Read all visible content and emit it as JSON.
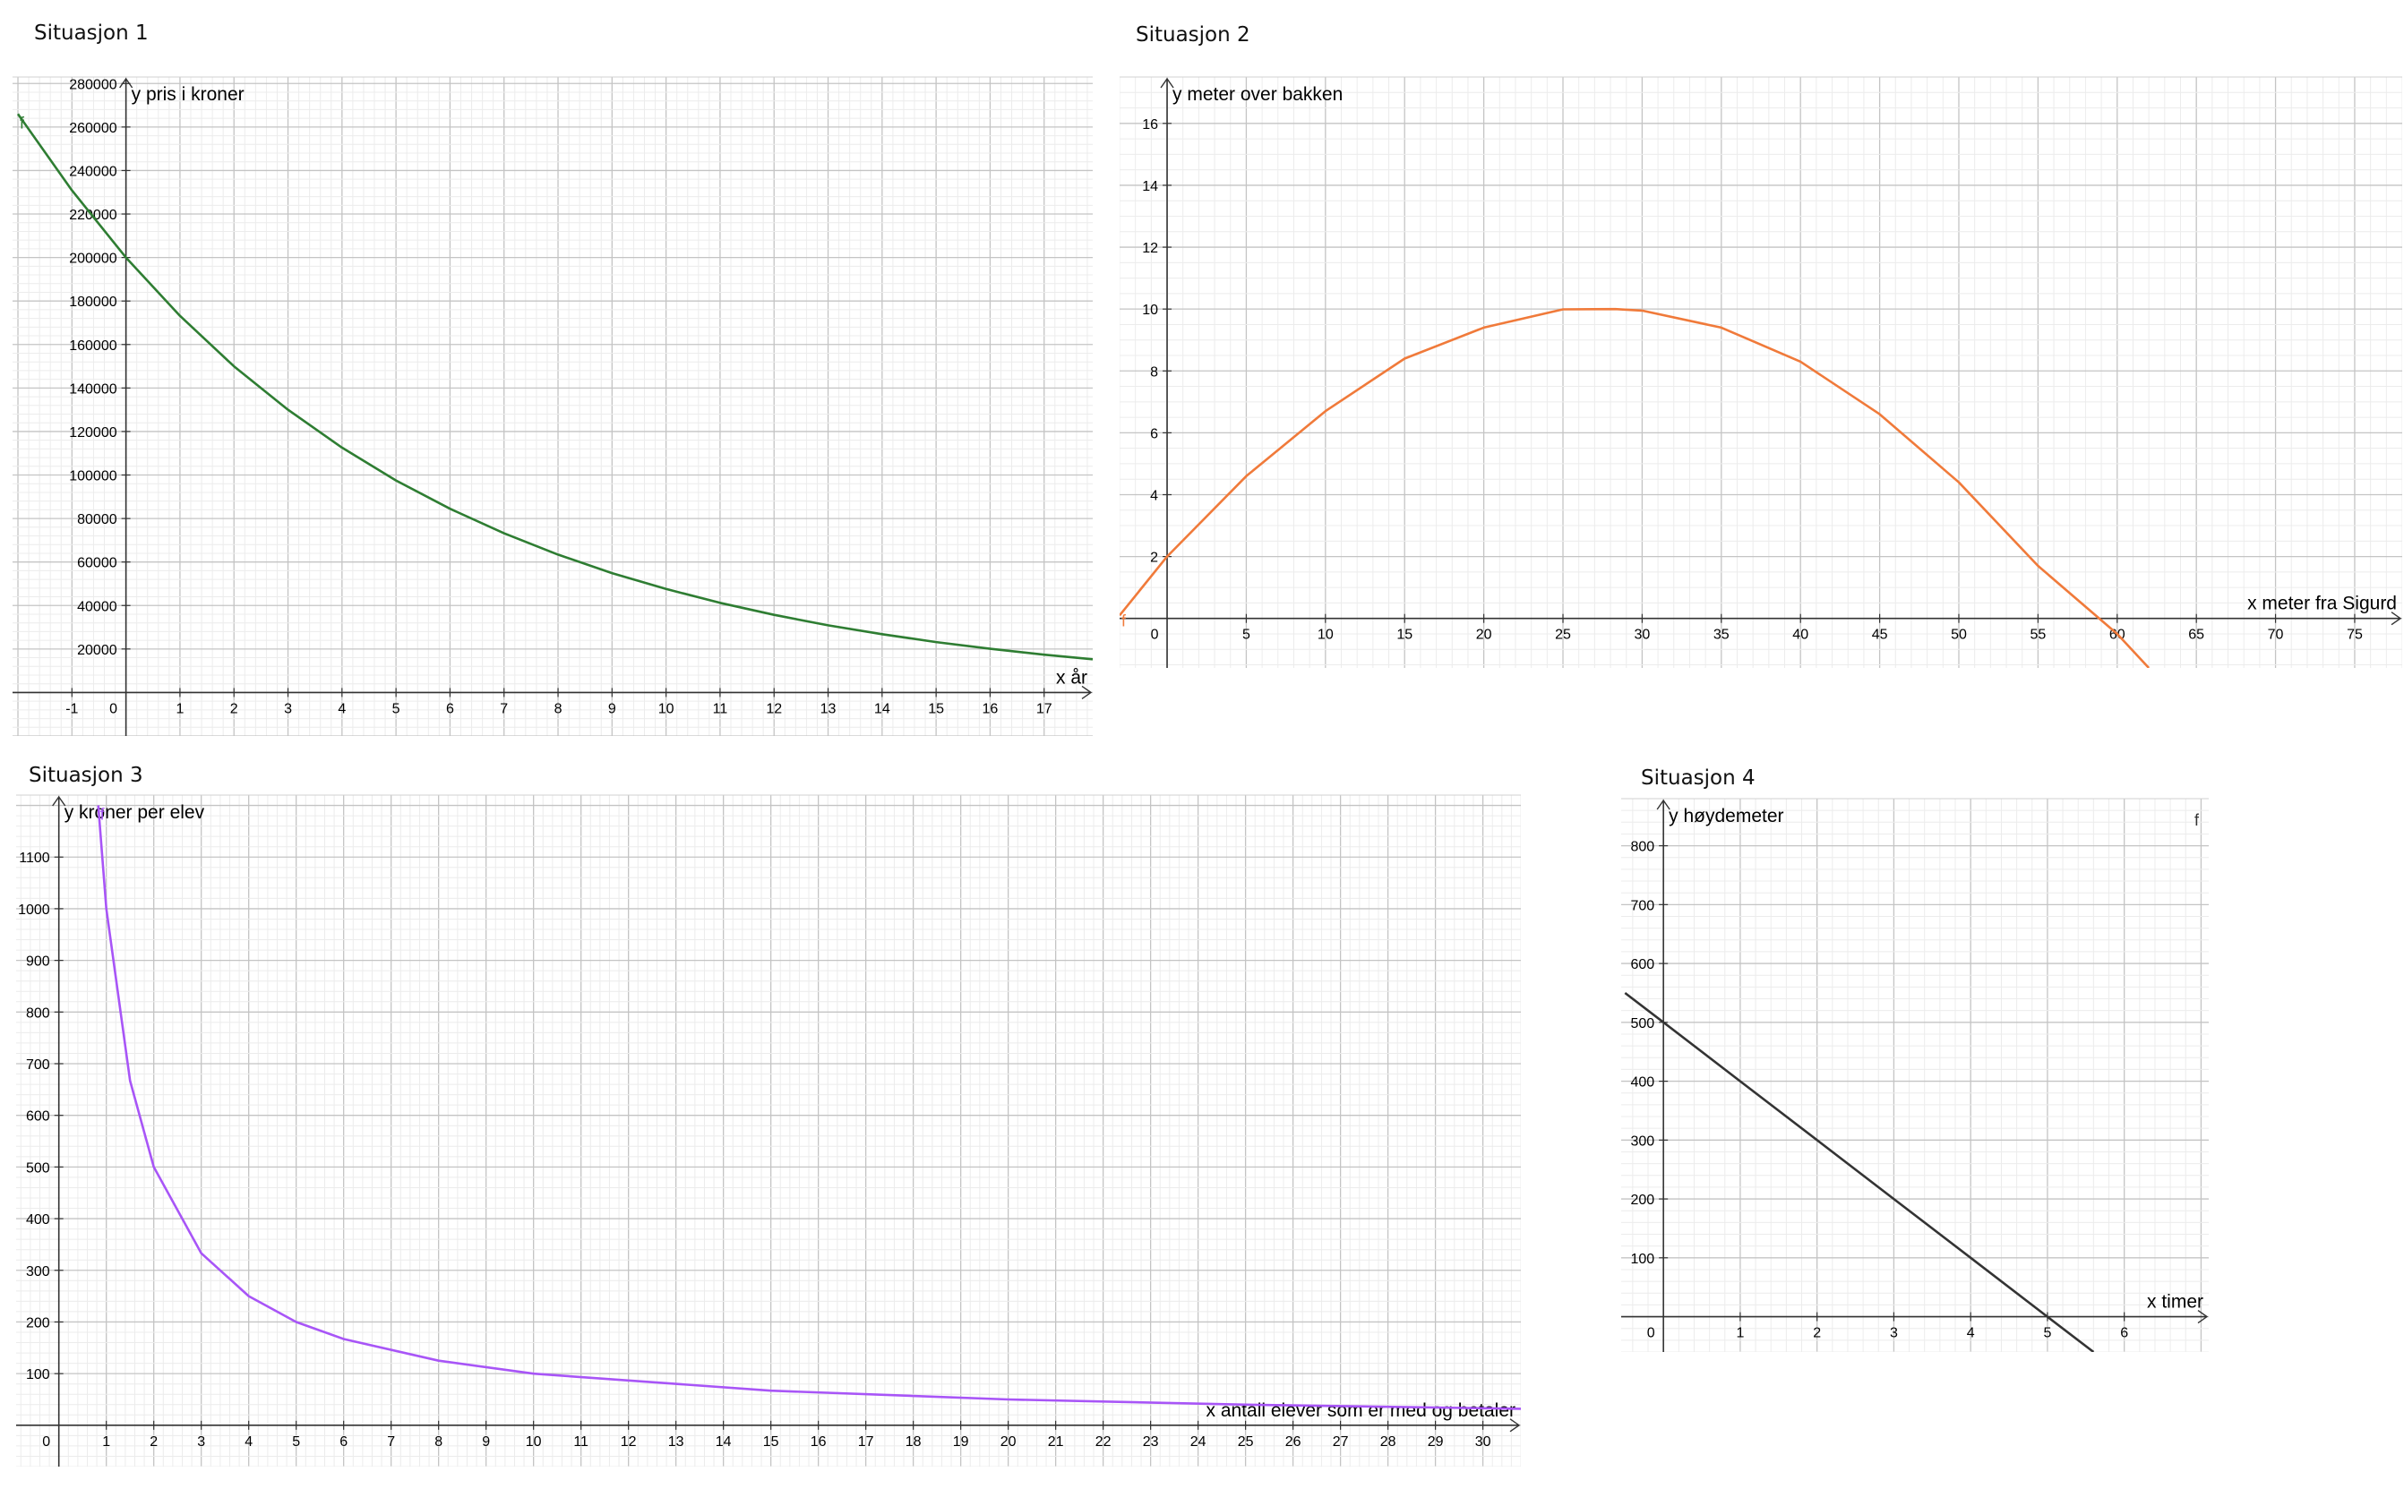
{
  "chart_data": [
    {
      "type": "line",
      "title": "Situasjon 1",
      "xlabel": "x år",
      "ylabel": "y pris i kroner",
      "function_label": "f",
      "color": "#2e7d32",
      "xlim": [
        -2.1,
        17.9
      ],
      "ylim": [
        -20000,
        283000
      ],
      "grid": true,
      "x_ticks": [
        -1,
        0,
        1,
        2,
        3,
        4,
        5,
        6,
        7,
        8,
        9,
        10,
        11,
        12,
        13,
        14,
        15,
        16,
        17
      ],
      "y_ticks": [
        20000,
        40000,
        60000,
        80000,
        100000,
        120000,
        140000,
        160000,
        180000,
        200000,
        220000,
        240000,
        260000,
        280000
      ],
      "x": [
        -2,
        -1,
        0,
        1,
        2,
        3,
        4,
        5,
        6,
        7,
        8,
        9,
        10,
        11,
        12,
        13,
        14,
        15,
        16,
        17,
        17.9
      ],
      "y": [
        266000,
        230900,
        200000,
        173200,
        150000,
        130000,
        112600,
        97500,
        84500,
        73200,
        63400,
        54900,
        47600,
        41200,
        35700,
        30900,
        26800,
        23200,
        20100,
        17400,
        15300
      ]
    },
    {
      "type": "line",
      "title": "Situasjon 2",
      "xlabel": "x meter fra Sigurd",
      "ylabel": "y meter over bakken",
      "function_label": "f",
      "color": "#f07a3a",
      "xlim": [
        -3,
        78
      ],
      "ylim": [
        -1.6,
        17.5
      ],
      "grid": true,
      "x_ticks": [
        0,
        5,
        10,
        15,
        20,
        25,
        30,
        35,
        40,
        45,
        50,
        55,
        60,
        65,
        70,
        75
      ],
      "y_ticks": [
        2,
        4,
        6,
        8,
        10,
        12,
        14,
        16
      ],
      "x": [
        -3,
        0,
        5,
        10,
        15,
        20,
        25,
        28.3,
        30,
        35,
        40,
        45,
        50,
        55,
        60,
        62
      ],
      "y": [
        0.1,
        2.0,
        4.6,
        6.7,
        8.4,
        9.4,
        9.99,
        10.0,
        9.95,
        9.4,
        8.3,
        6.6,
        4.4,
        1.7,
        -0.5,
        -1.6
      ]
    },
    {
      "type": "line",
      "title": "Situasjon 3",
      "xlabel": "x antall elever som er med og betaler",
      "ylabel": "y kroner per elev",
      "function_label": "f",
      "color": "#a855f7",
      "xlim": [
        -0.9,
        30.8
      ],
      "ylim": [
        -80,
        1220
      ],
      "grid": true,
      "x_ticks": [
        0,
        1,
        2,
        3,
        4,
        5,
        6,
        7,
        8,
        9,
        10,
        11,
        12,
        13,
        14,
        15,
        16,
        17,
        18,
        19,
        20,
        21,
        22,
        23,
        24,
        25,
        26,
        27,
        28,
        29,
        30
      ],
      "y_ticks": [
        100,
        200,
        300,
        400,
        500,
        600,
        700,
        800,
        900,
        1000,
        1100
      ],
      "x": [
        0.83,
        1,
        1.5,
        2,
        3,
        4,
        5,
        6,
        8,
        10,
        15,
        20,
        25,
        30,
        30.8
      ],
      "y": [
        1200,
        1000,
        667,
        500,
        333,
        250,
        200,
        167,
        125,
        100,
        67,
        50,
        40,
        33,
        32
      ]
    },
    {
      "type": "line",
      "title": "Situasjon 4",
      "xlabel": "x timer",
      "ylabel": "y høydemeter",
      "function_label": "f",
      "color": "#333333",
      "xlim": [
        -0.55,
        7.1
      ],
      "ylim": [
        -60,
        880
      ],
      "grid": true,
      "x_ticks": [
        0,
        1,
        2,
        3,
        4,
        5,
        6
      ],
      "y_ticks": [
        100,
        200,
        300,
        400,
        500,
        600,
        700,
        800
      ],
      "x": [
        -0.5,
        0,
        1,
        2,
        3,
        4,
        5,
        5.6
      ],
      "y": [
        550,
        500,
        400,
        300,
        200,
        100,
        0,
        -60
      ]
    }
  ]
}
